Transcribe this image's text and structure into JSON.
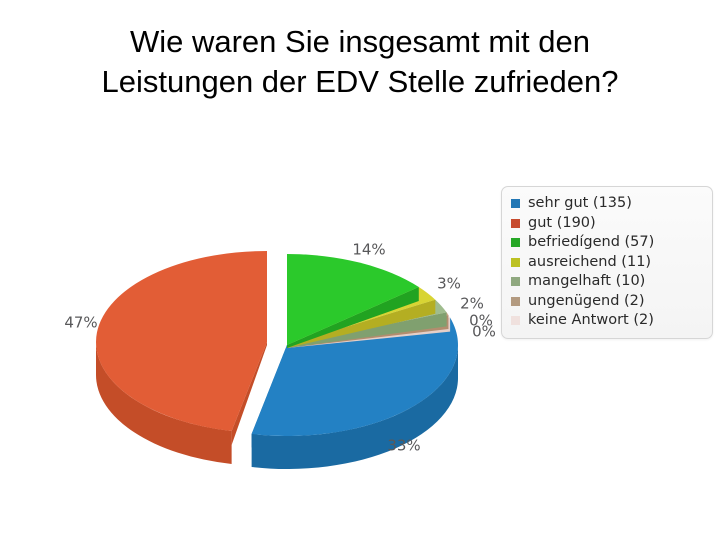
{
  "title": {
    "line1": "Wie waren Sie insgesamt mit den",
    "line2": "Leistungen der EDV Stelle zufrieden?"
  },
  "chart_data": {
    "type": "pie",
    "style": "3d-exploded",
    "title": "Wie waren Sie insgesamt mit den Leistungen der EDV Stelle zufrieden?",
    "legend_position": "right",
    "exploded_slice": "gut",
    "start_angle_deg": 0,
    "direction": "clockwise",
    "draw_order": [
      2,
      3,
      4,
      5,
      6,
      0,
      1
    ],
    "paint_order": [
      1,
      0,
      6,
      5,
      4,
      3,
      2
    ],
    "slices": [
      {
        "name": "sehr gut",
        "label": "sehr gut (135)",
        "count": 135,
        "percent": 33.2,
        "percent_label": "33%",
        "color": "#2381c4",
        "side": "#1a6aa2",
        "legend_color": "#2277b5"
      },
      {
        "name": "gut",
        "label": "gut (190)",
        "count": 190,
        "percent": 46.7,
        "percent_label": "47%",
        "color": "#e25d36",
        "side": "#c44d28",
        "legend_color": "#c74b2e"
      },
      {
        "name": "befriedígend",
        "label": "befriedígend (57)",
        "count": 57,
        "percent": 14.0,
        "percent_label": "14%",
        "color": "#2bc92b",
        "side": "#21a321",
        "legend_color": "#27a827"
      },
      {
        "name": "ausreichend",
        "label": "ausreichend (11)",
        "count": 11,
        "percent": 2.7,
        "percent_label": "3%",
        "color": "#d8d434",
        "side": "#b4ae22",
        "legend_color": "#bcc122"
      },
      {
        "name": "mangelhaft",
        "label": "mangelhaft (10)",
        "count": 10,
        "percent": 2.5,
        "percent_label": "2%",
        "color": "#9fbc8e",
        "side": "#80a06f",
        "legend_color": "#8fa87f"
      },
      {
        "name": "ungenügend",
        "label": "ungenügend (2)",
        "count": 2,
        "percent": 0.5,
        "percent_label": "0%",
        "color": "#cfaa8b",
        "side": "#b28d6e",
        "legend_color": "#b39a80"
      },
      {
        "name": "keine Antwort",
        "label": "keine Antwort (2)",
        "count": 2,
        "percent": 0.5,
        "percent_label": "0%",
        "color": "#f6eae5",
        "side": "#e5cfc8",
        "legend_color": "#f0e1de"
      }
    ]
  }
}
